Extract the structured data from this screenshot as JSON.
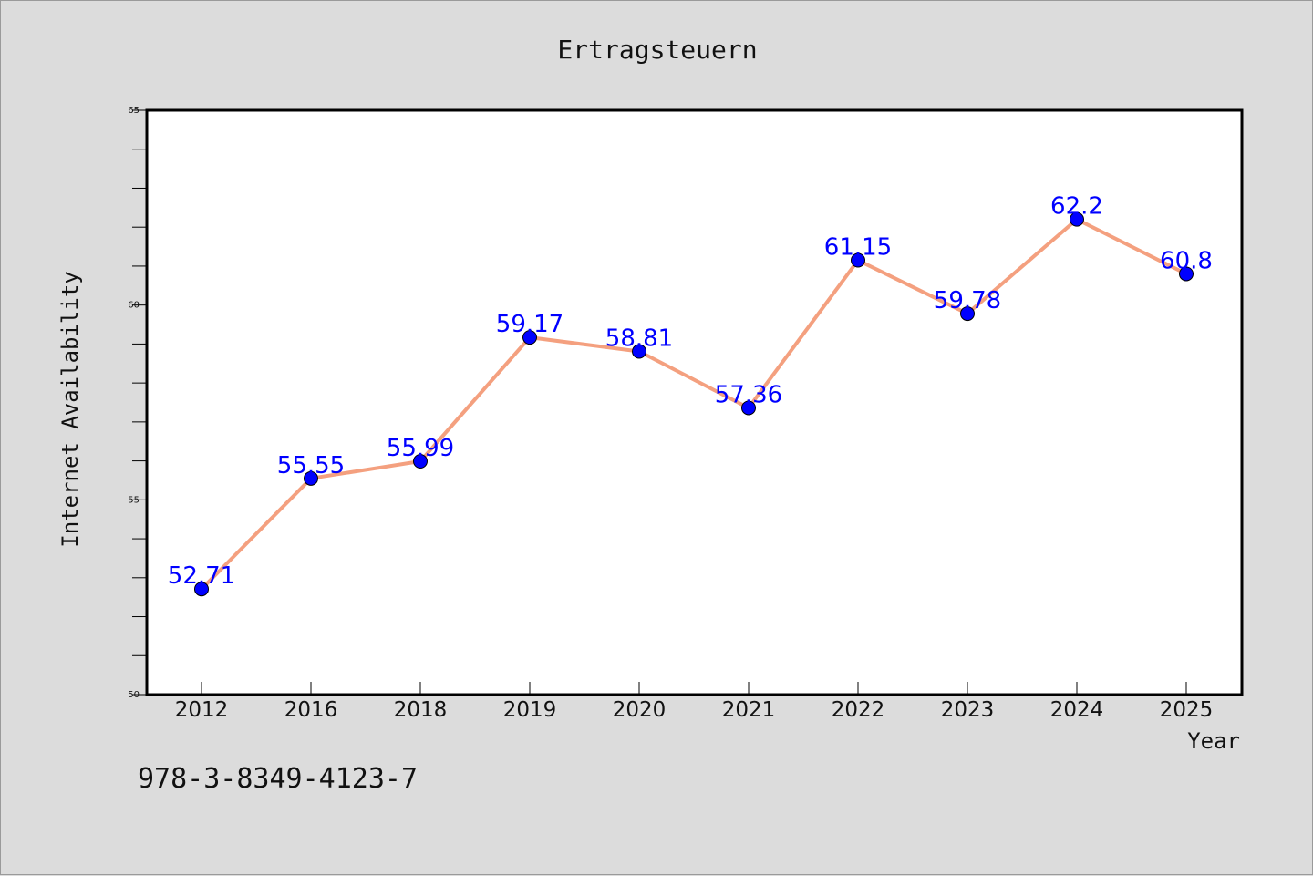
{
  "chart_data": {
    "type": "line",
    "title": "Ertragsteuern",
    "xlabel": "Year",
    "ylabel": "Internet Availability",
    "categories": [
      "2012",
      "2016",
      "2018",
      "2019",
      "2020",
      "2021",
      "2022",
      "2023",
      "2024",
      "2025"
    ],
    "series": [
      {
        "values": [
          52.71,
          55.55,
          55.99,
          59.17,
          58.81,
          57.36,
          61.15,
          59.78,
          62.2,
          60.8
        ],
        "labels": [
          "52.71",
          "55.55",
          "55.99",
          "59.17",
          "58.81",
          "57.36",
          "61.15",
          "59.78",
          "62.2",
          "60.8"
        ],
        "line_color": "#f4a07f",
        "marker_color": "#0000ff"
      }
    ],
    "ylim": [
      50,
      65
    ],
    "y_ticks": [
      "50",
      "55",
      "60",
      "65"
    ],
    "grid": false,
    "legend": "none"
  },
  "footnote": "978-3-8349-4123-7",
  "colors": {
    "background": "#dcdcdc",
    "plot_background": "#ffffff",
    "data_label": "#0000ff"
  }
}
